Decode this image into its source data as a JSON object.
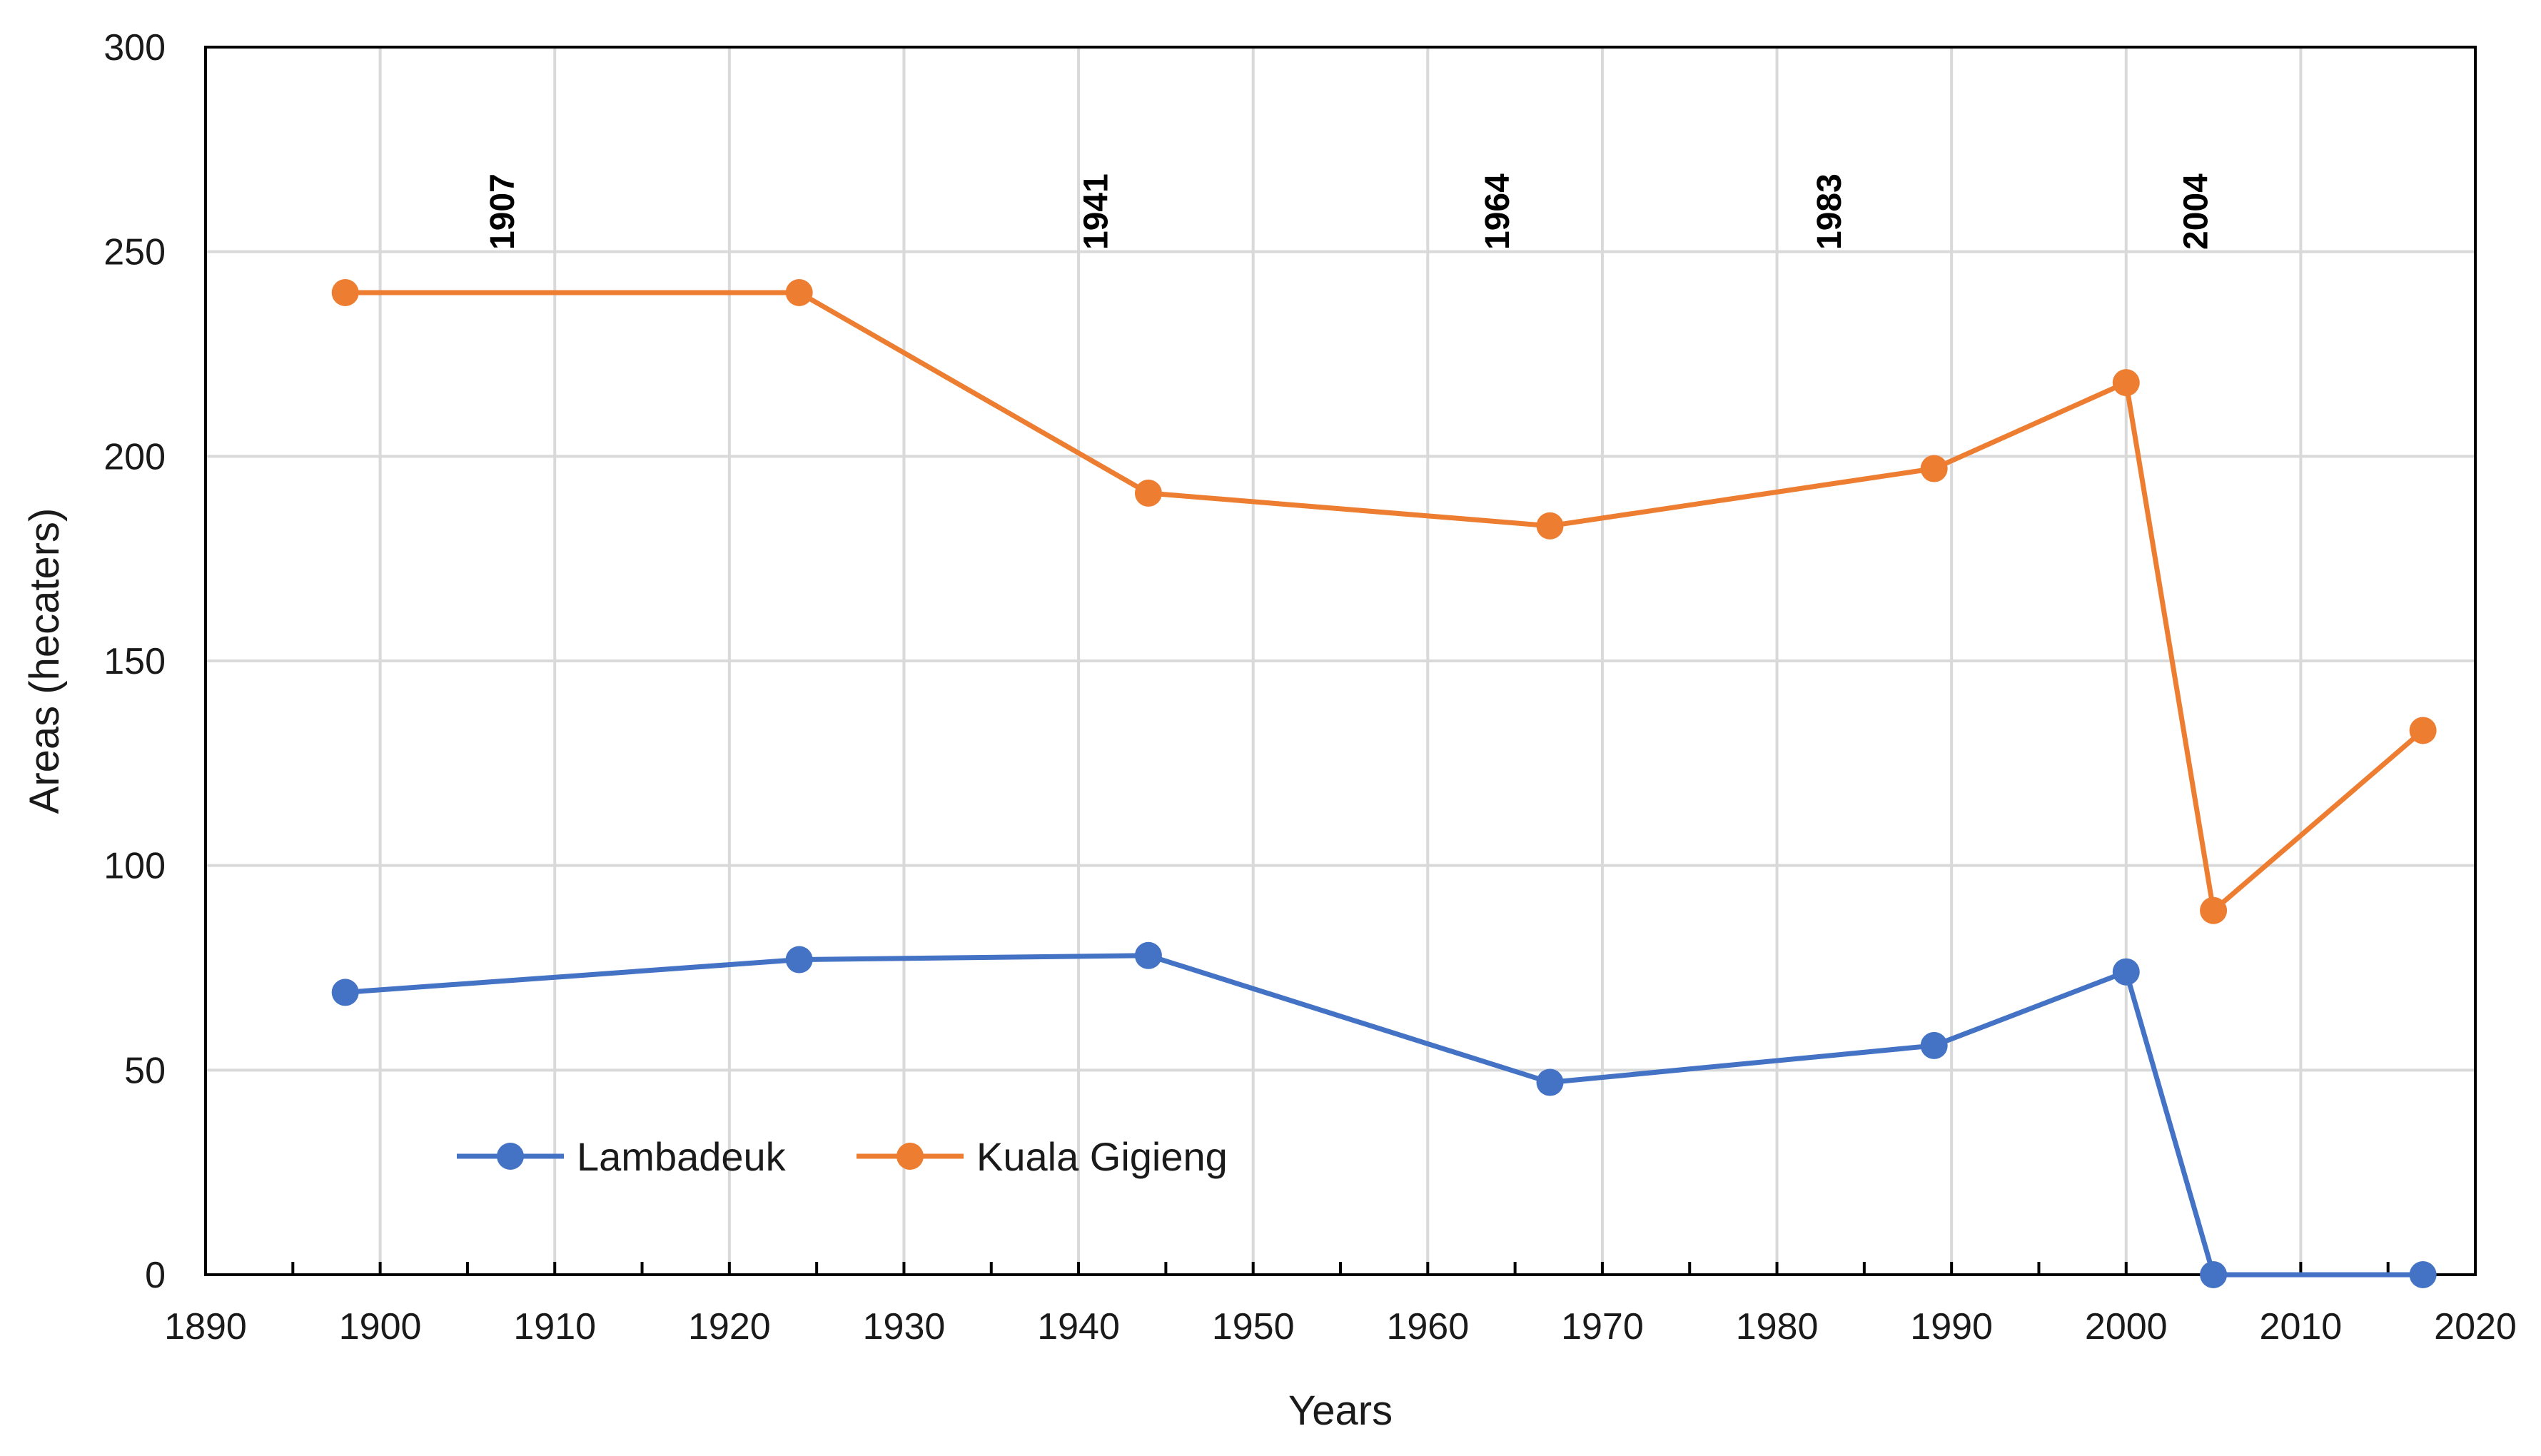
{
  "chart_data": {
    "type": "line",
    "title": "",
    "xlabel": "Years",
    "ylabel": "Areas (hecaters)",
    "xlim": [
      1890,
      2020
    ],
    "ylim": [
      0,
      300
    ],
    "x_ticks": [
      1890,
      1900,
      1910,
      1920,
      1930,
      1940,
      1950,
      1960,
      1970,
      1980,
      1990,
      2000,
      2010,
      2020
    ],
    "y_ticks": [
      0,
      50,
      100,
      150,
      200,
      250,
      300
    ],
    "grid": true,
    "legend_position": "bottom-left",
    "annotations": [
      {
        "label": "1907",
        "x": 1907
      },
      {
        "label": "1941",
        "x": 1941
      },
      {
        "label": "1964",
        "x": 1964
      },
      {
        "label": "1983",
        "x": 1983
      },
      {
        "label": "2004",
        "x": 2004
      }
    ],
    "series": [
      {
        "name": "Lambadeuk",
        "color": "#4472C4",
        "x": [
          1898,
          1924,
          1944,
          1967,
          1989,
          2000,
          2005,
          2017
        ],
        "values": [
          69,
          77,
          78,
          47,
          56,
          74,
          0,
          0
        ]
      },
      {
        "name": "Kuala Gigieng",
        "color": "#ED7D31",
        "x": [
          1898,
          1924,
          1944,
          1967,
          1989,
          2000,
          2005,
          2017
        ],
        "values": [
          240,
          240,
          191,
          183,
          197,
          218,
          89,
          133
        ]
      }
    ]
  }
}
